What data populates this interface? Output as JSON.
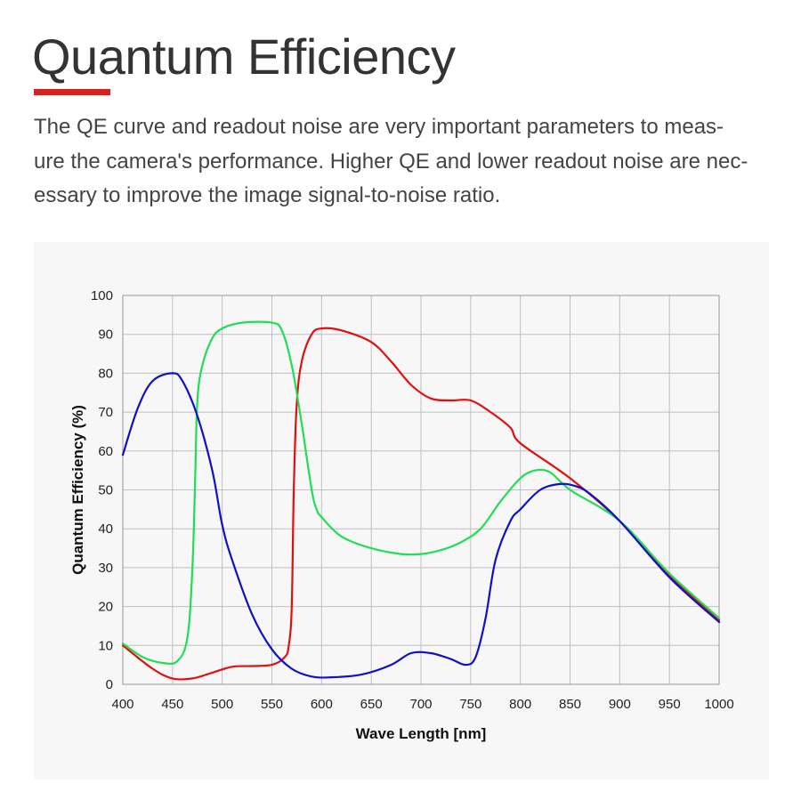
{
  "header": {
    "title": "Quantum Efficiency",
    "description": "The QE curve and readout noise are very important parameters to meas-\nure the camera's performance. Higher QE and lower readout noise are nec-\nessary to improve the image signal-to-noise ratio."
  },
  "colors": {
    "accent": "#d9201e",
    "red": "#e01010",
    "green": "#22dd55",
    "blue": "#1010c8",
    "grid": "#bfbfbf"
  },
  "chart_data": {
    "type": "line",
    "title": "",
    "xlabel": "Wave Length [nm]",
    "ylabel": "Quantum Efficiency (%)",
    "xlim": [
      400,
      1000
    ],
    "ylim": [
      0,
      100
    ],
    "xticks": [
      400,
      450,
      500,
      550,
      600,
      650,
      700,
      750,
      800,
      850,
      900,
      950,
      1000
    ],
    "yticks": [
      0,
      10,
      20,
      30,
      40,
      50,
      60,
      70,
      80,
      90,
      100
    ],
    "grid": true,
    "series": [
      {
        "color": "#e01010",
        "x": [
          400,
          430,
          450,
          470,
          490,
          510,
          530,
          550,
          563,
          567,
          570,
          572,
          575,
          580,
          590,
          600,
          620,
          650,
          670,
          690,
          710,
          730,
          750,
          770,
          790,
          800,
          850,
          900,
          950,
          1000
        ],
        "y": [
          10,
          4,
          1.5,
          1.5,
          3,
          4.5,
          4.7,
          5,
          7,
          10,
          20,
          50,
          72,
          83,
          90,
          91.5,
          91,
          88,
          83,
          77,
          73.5,
          73,
          73,
          70,
          66,
          62,
          53,
          42,
          28,
          16.5
        ]
      },
      {
        "color": "#22dd55",
        "x": [
          400,
          420,
          440,
          455,
          465,
          470,
          473,
          475,
          480,
          490,
          500,
          520,
          550,
          560,
          570,
          580,
          590,
          595,
          600,
          620,
          650,
          680,
          700,
          720,
          740,
          760,
          780,
          800,
          815,
          830,
          850,
          900,
          950,
          1000
        ],
        "y": [
          10.5,
          7,
          5.5,
          6,
          12,
          30,
          55,
          73,
          82,
          89,
          91.5,
          93,
          93,
          91,
          82,
          67,
          50,
          45,
          43,
          38,
          35,
          33.5,
          33.5,
          34.5,
          36.5,
          40,
          47,
          53,
          55,
          54.5,
          50,
          42,
          28.5,
          17
        ]
      },
      {
        "color": "#1010c8",
        "x": [
          400,
          415,
          430,
          450,
          460,
          475,
          490,
          500,
          510,
          530,
          550,
          570,
          590,
          610,
          640,
          670,
          690,
          710,
          730,
          745,
          755,
          765,
          775,
          790,
          800,
          820,
          840,
          855,
          870,
          900,
          950,
          1000
        ],
        "y": [
          59,
          71,
          78,
          80,
          78,
          69,
          55,
          41,
          32,
          18,
          9,
          4,
          2,
          1.8,
          2.5,
          5,
          8,
          8,
          6.5,
          5,
          7,
          17,
          32,
          42,
          45,
          50,
          51.5,
          51,
          49,
          42,
          27.5,
          16
        ]
      }
    ]
  }
}
